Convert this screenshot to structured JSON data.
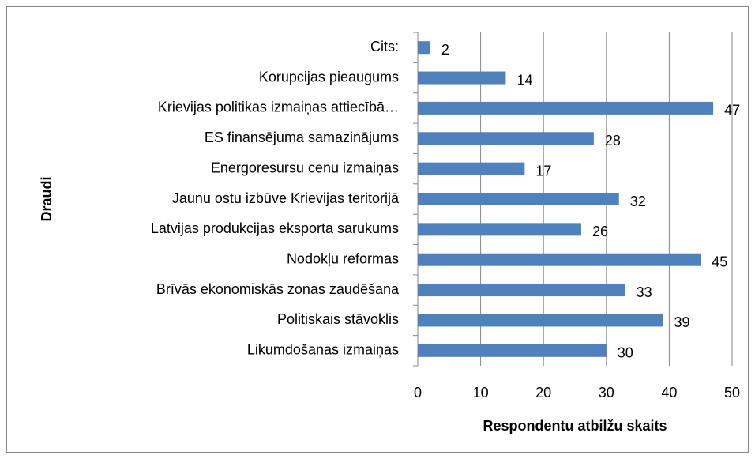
{
  "chart_data": {
    "type": "bar",
    "orientation": "horizontal",
    "x_label": "Respondentu atbilžu skaits",
    "y_label": "Draudi",
    "categories": [
      "Cits:",
      "Korupcijas pieaugums",
      "Krievijas politikas izmaiņas attiecībā…",
      "ES finansējuma samazinājums",
      "Energoresursu cenu izmaiņas",
      "Jaunu ostu izbūve Krievijas teritorijā",
      "Latvijas produkcijas eksporta sarukums",
      "Nodokļu reformas",
      "Brīvās ekonomiskās zonas zaudēšana",
      "Politiskais stāvoklis",
      "Likumdošanas izmaiņas"
    ],
    "values": [
      2,
      14,
      47,
      28,
      17,
      32,
      26,
      45,
      33,
      39,
      30
    ],
    "color": "#4f81bd",
    "xlim": [
      0,
      50
    ],
    "xticks": [
      0,
      10,
      20,
      30,
      40,
      50
    ],
    "grid": true
  }
}
